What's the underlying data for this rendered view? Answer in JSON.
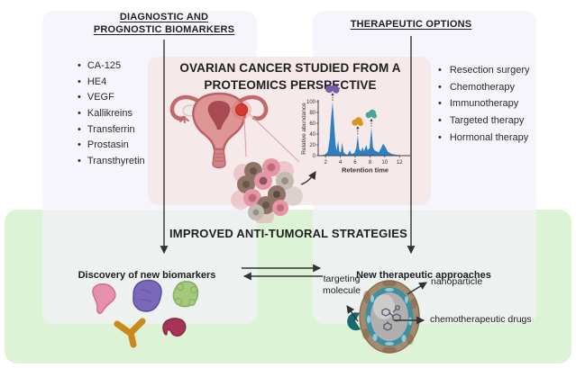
{
  "palette": {
    "panel_lavender": "#f6f4fb",
    "panel_pink": "#f6e9ea",
    "panel_green": "#dcf4d5",
    "arrow": "#333333",
    "chart_blue": "#2d7fc1",
    "text": "#1f1f1f"
  },
  "top_left": {
    "title_line1": "DIAGNOSTIC AND",
    "title_line2": "PROGNOSTIC BIOMARKERS",
    "items": [
      "CA-125",
      "HE4",
      "VEGF",
      "Kallikreins",
      "Transferrin",
      "Prostasin",
      "Transthyretin"
    ]
  },
  "top_right": {
    "title": "THERAPEUTIC OPTIONS",
    "items": [
      "Resection surgery",
      "Chemotherapy",
      "Immunotherapy",
      "Targeted therapy",
      "Hormonal therapy"
    ]
  },
  "center": {
    "title_line1": "OVARIAN CANCER STUDIED FROM A",
    "title_line2": "PROTEOMICS PERSPECTIVE"
  },
  "bottom": {
    "title": "IMPROVED ANTI-TUMORAL STRATEGIES",
    "left_caption": "Discovery of new biomarkers",
    "right_caption": "New therapeutic approaches",
    "labels": {
      "targeting": "targeting molecule",
      "nanoparticle": "nanoparticle",
      "chemo": "chemotherapeutic drugs"
    }
  },
  "chart_data": {
    "type": "area",
    "title": "",
    "xlabel": "Retention time",
    "ylabel": "Relative abundance",
    "xticks": [
      2,
      4,
      6,
      8,
      10,
      12
    ],
    "yticks": [
      0,
      20,
      40,
      60,
      80,
      100
    ],
    "xlim": [
      1,
      13.2
    ],
    "ylim": [
      0,
      100
    ],
    "grid": false,
    "color": "#2d7fc1",
    "points": [
      [
        1.0,
        0
      ],
      [
        1.6,
        1
      ],
      [
        2.0,
        3
      ],
      [
        2.3,
        8
      ],
      [
        2.55,
        30
      ],
      [
        2.75,
        70
      ],
      [
        2.95,
        100
      ],
      [
        3.15,
        60
      ],
      [
        3.35,
        20
      ],
      [
        3.5,
        10
      ],
      [
        3.7,
        28
      ],
      [
        3.85,
        8
      ],
      [
        4.05,
        6
      ],
      [
        4.25,
        24
      ],
      [
        4.45,
        6
      ],
      [
        4.7,
        3
      ],
      [
        5.0,
        2
      ],
      [
        5.3,
        10
      ],
      [
        5.5,
        3
      ],
      [
        5.9,
        5
      ],
      [
        6.15,
        14
      ],
      [
        6.35,
        38
      ],
      [
        6.55,
        12
      ],
      [
        6.8,
        8
      ],
      [
        7.0,
        16
      ],
      [
        7.2,
        8
      ],
      [
        7.5,
        20
      ],
      [
        7.7,
        10
      ],
      [
        7.95,
        14
      ],
      [
        8.2,
        52
      ],
      [
        8.4,
        16
      ],
      [
        8.6,
        10
      ],
      [
        8.9,
        8
      ],
      [
        9.2,
        6
      ],
      [
        9.5,
        14
      ],
      [
        9.8,
        22
      ],
      [
        10.1,
        16
      ],
      [
        10.4,
        8
      ],
      [
        10.8,
        4
      ],
      [
        11.3,
        2
      ],
      [
        12.0,
        1
      ],
      [
        12.8,
        0
      ]
    ],
    "annotations": [
      {
        "x": 2.95,
        "peak": 100,
        "color": "#7b5ea8",
        "size": 1.25,
        "name": "protein-purple"
      },
      {
        "x": 6.35,
        "peak": 38,
        "color": "#d9941f",
        "size": 1.0,
        "name": "protein-orange"
      },
      {
        "x": 8.2,
        "peak": 52,
        "color": "#4ba39b",
        "size": 1.0,
        "name": "protein-teal"
      }
    ]
  }
}
